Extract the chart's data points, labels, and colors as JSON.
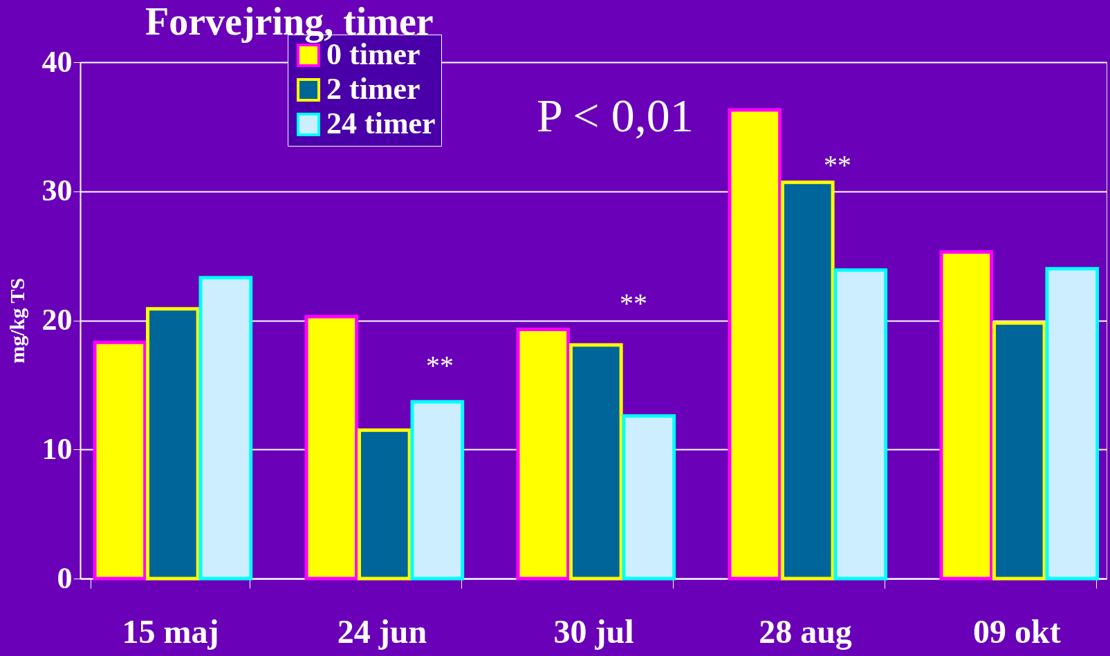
{
  "chart_data": {
    "type": "bar",
    "title": "Forvejring, timer",
    "ylabel": "mg/kg TS",
    "categories": [
      "15 maj",
      "24 jun",
      "30 jul",
      "28 aug",
      "09 okt"
    ],
    "series": [
      {
        "name": "0 timer",
        "color": "#ffff00",
        "values": [
          18.3,
          20.3,
          19.3,
          36.3,
          25.3
        ]
      },
      {
        "name": "2 timer",
        "color": "#006699",
        "values": [
          20.9,
          11.5,
          18.1,
          30.7,
          19.8
        ]
      },
      {
        "name": "24 timer",
        "color": "#cceeff",
        "values": [
          23.3,
          13.7,
          12.6,
          23.9,
          24.0
        ]
      }
    ],
    "ylim": [
      0,
      40
    ],
    "yticks": [
      0,
      10,
      20,
      30,
      40
    ],
    "grid": "y",
    "legend": "top left",
    "annotations": [
      "P < 0,01",
      "**",
      "**",
      "**"
    ]
  }
}
